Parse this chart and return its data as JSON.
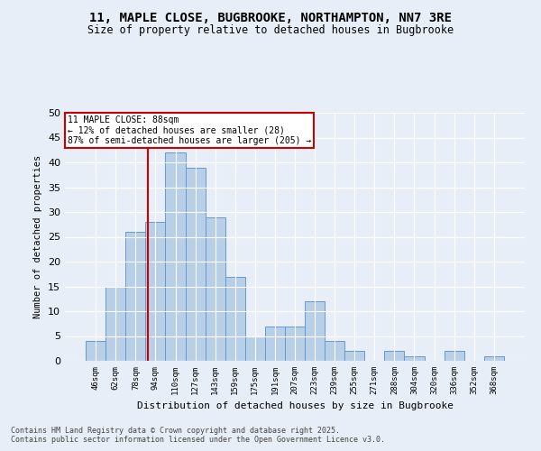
{
  "title_line1": "11, MAPLE CLOSE, BUGBROOKE, NORTHAMPTON, NN7 3RE",
  "title_line2": "Size of property relative to detached houses in Bugbrooke",
  "xlabel": "Distribution of detached houses by size in Bugbrooke",
  "ylabel": "Number of detached properties",
  "categories": [
    "46sqm",
    "62sqm",
    "78sqm",
    "94sqm",
    "110sqm",
    "127sqm",
    "143sqm",
    "159sqm",
    "175sqm",
    "191sqm",
    "207sqm",
    "223sqm",
    "239sqm",
    "255sqm",
    "271sqm",
    "288sqm",
    "304sqm",
    "320sqm",
    "336sqm",
    "352sqm",
    "368sqm"
  ],
  "values": [
    4,
    15,
    26,
    28,
    42,
    39,
    29,
    17,
    5,
    7,
    7,
    12,
    4,
    2,
    0,
    2,
    1,
    0,
    2,
    0,
    1
  ],
  "bar_color": "#b8cfe8",
  "bar_edge_color": "#6699cc",
  "background_color": "#e8eef7",
  "vline_color": "#cc0000",
  "annotation_box_color": "#cc0000",
  "annotation_title": "11 MAPLE CLOSE: 88sqm",
  "annotation_line1": "← 12% of detached houses are smaller (28)",
  "annotation_line2": "87% of semi-detached houses are larger (205) →",
  "ylim": [
    0,
    50
  ],
  "yticks": [
    0,
    5,
    10,
    15,
    20,
    25,
    30,
    35,
    40,
    45,
    50
  ],
  "footer_line1": "Contains HM Land Registry data © Crown copyright and database right 2025.",
  "footer_line2": "Contains public sector information licensed under the Open Government Licence v3.0."
}
